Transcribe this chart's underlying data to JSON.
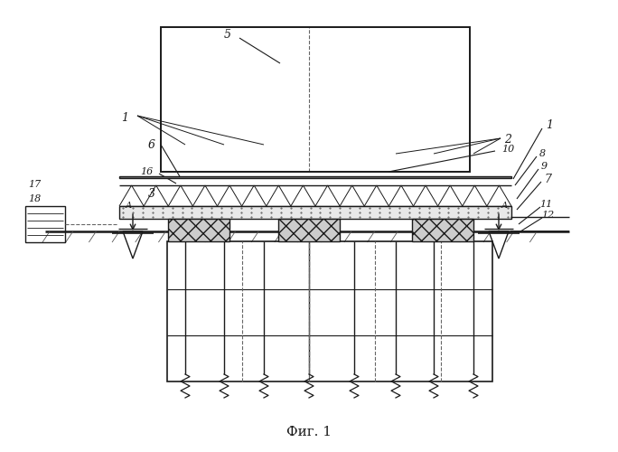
{
  "title": "Фиг. 1",
  "bg_color": "#ffffff",
  "line_color": "#1a1a1a",
  "line_width": 1.0,
  "fig_width": 6.84,
  "fig_height": 5.0
}
